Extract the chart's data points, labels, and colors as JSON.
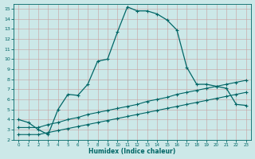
{
  "xlabel": "Humidex (Indice chaleur)",
  "bg_color": "#cce8e8",
  "grid_color": "#b0d4d4",
  "line_color": "#006666",
  "xlim": [
    -0.5,
    23.5
  ],
  "ylim": [
    2,
    15.5
  ],
  "xticks": [
    0,
    1,
    2,
    3,
    4,
    5,
    6,
    7,
    8,
    9,
    10,
    11,
    12,
    13,
    14,
    15,
    16,
    17,
    18,
    19,
    20,
    21,
    22,
    23
  ],
  "yticks": [
    2,
    3,
    4,
    5,
    6,
    7,
    8,
    9,
    10,
    11,
    12,
    13,
    14,
    15
  ],
  "line1_x": [
    0,
    1,
    2,
    3,
    4,
    5,
    6,
    7,
    8,
    9,
    10,
    11,
    12,
    13,
    14,
    15,
    16,
    17,
    18,
    19,
    20,
    21,
    22,
    23
  ],
  "line1_y": [
    4.0,
    3.7,
    3.0,
    2.5,
    5.0,
    6.5,
    6.4,
    7.5,
    9.8,
    10.0,
    12.7,
    15.2,
    14.8,
    14.8,
    14.5,
    13.9,
    12.9,
    9.2,
    7.5,
    7.5,
    7.3,
    7.1,
    5.5,
    5.4
  ],
  "line2_x": [
    0,
    1,
    2,
    3,
    4,
    5,
    6,
    7,
    8,
    9,
    10,
    11,
    12,
    13,
    14,
    15,
    16,
    17,
    18,
    19,
    20,
    21,
    22,
    23
  ],
  "line2_y": [
    3.2,
    3.2,
    3.2,
    3.5,
    3.7,
    4.0,
    4.2,
    4.5,
    4.7,
    4.9,
    5.1,
    5.3,
    5.5,
    5.8,
    6.0,
    6.2,
    6.5,
    6.7,
    6.9,
    7.1,
    7.3,
    7.5,
    7.7,
    7.9
  ],
  "line3_x": [
    0,
    1,
    2,
    3,
    4,
    5,
    6,
    7,
    8,
    9,
    10,
    11,
    12,
    13,
    14,
    15,
    16,
    17,
    18,
    19,
    20,
    21,
    22,
    23
  ],
  "line3_y": [
    2.5,
    2.5,
    2.5,
    2.7,
    2.9,
    3.1,
    3.3,
    3.5,
    3.7,
    3.9,
    4.1,
    4.3,
    4.5,
    4.7,
    4.9,
    5.1,
    5.3,
    5.5,
    5.7,
    5.9,
    6.1,
    6.3,
    6.5,
    6.7
  ]
}
